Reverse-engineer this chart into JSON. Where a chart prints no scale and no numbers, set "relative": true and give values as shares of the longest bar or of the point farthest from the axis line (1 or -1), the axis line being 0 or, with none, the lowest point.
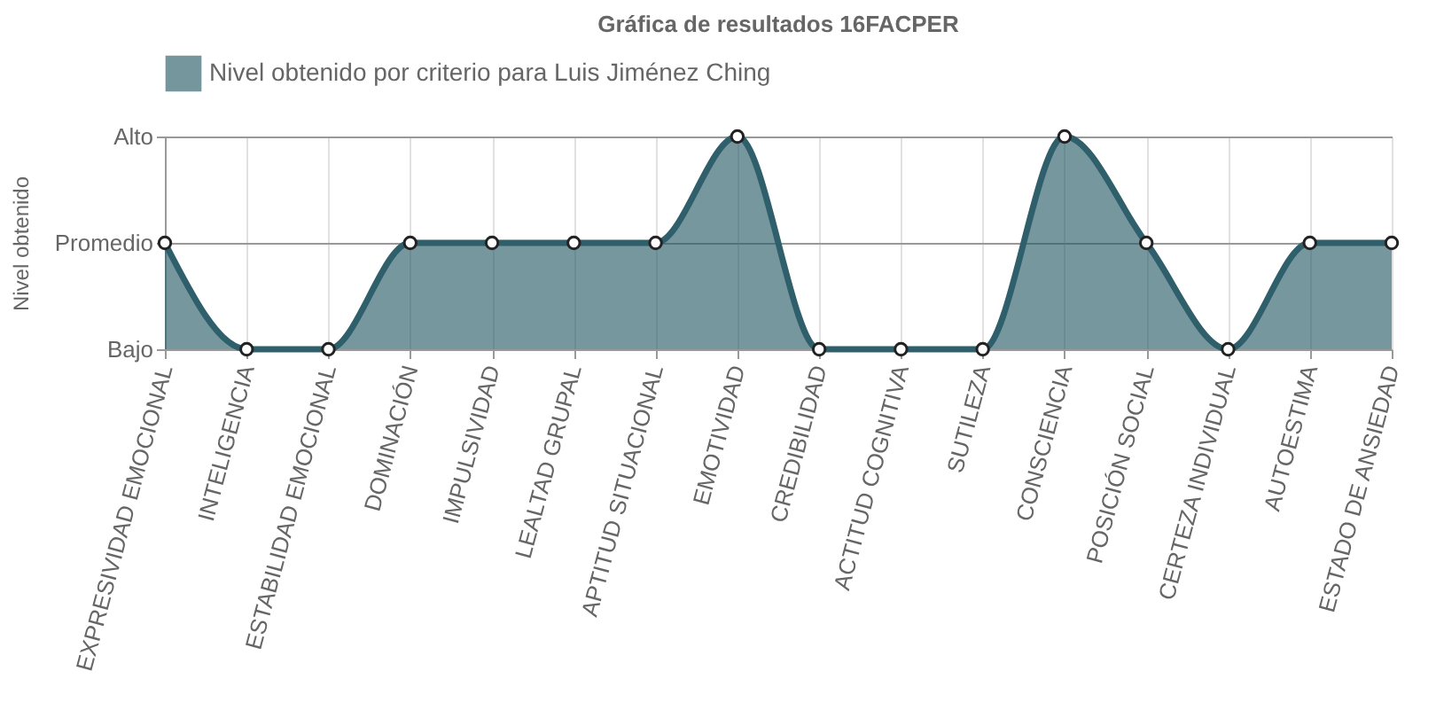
{
  "chart_data": {
    "type": "area",
    "title": "Gráfica de resultados 16FACPER",
    "ylabel": "Nivel obtenido",
    "relative": true,
    "categories": [
      "EXPRESIVIDAD EMOCIONAL",
      "INTELIGENCIA",
      "ESTABILIDAD EMOCIONAL",
      "DOMINACIÓN",
      "IMPULSIVIDAD",
      "LEALTAD GRUPAL",
      "APTITUD SITUACIONAL",
      "EMOTIVIDAD",
      "CREDIBILIDAD",
      "ACTITUD COGNITIVA",
      "SUTILEZA",
      "CONSCIENCIA",
      "POSICIÓN SOCIAL",
      "CERTEZA INDIVIDUAL",
      "AUTOESTIMA",
      "ESTADO DE ANSIEDAD"
    ],
    "annotations": [
      "Alto",
      "Promedio",
      "Bajo"
    ],
    "series": [
      {
        "name": "Nivel obtenido por criterio para Luis Jiménez Ching",
        "color": "#2e5f6b",
        "values": [
          0.5,
          0,
          0,
          0.5,
          0.5,
          0.5,
          0.5,
          1,
          0,
          0,
          0,
          1,
          0.5,
          0,
          0.5,
          0.5
        ]
      }
    ],
    "grid": true,
    "legend": "top",
    "marker": "circle"
  }
}
